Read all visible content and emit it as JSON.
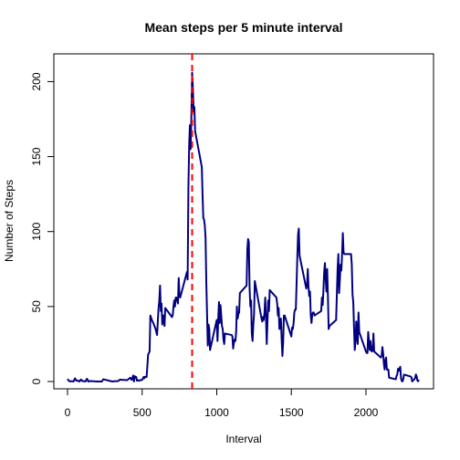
{
  "chart_data": {
    "type": "line",
    "title": "Mean steps per 5 minute interval",
    "xlabel": "Interval",
    "ylabel": "Number of Steps",
    "xlim": [
      0,
      2355
    ],
    "ylim": [
      0,
      210
    ],
    "xticks": [
      0,
      500,
      1000,
      1500,
      2000
    ],
    "yticks": [
      0,
      50,
      100,
      150,
      200
    ],
    "grid": false,
    "series": [
      {
        "color": "#000080",
        "points": [
          [
            0,
            1.7
          ],
          [
            10,
            0.3
          ],
          [
            20,
            0.1
          ],
          [
            30,
            0.2
          ],
          [
            40,
            0.0
          ],
          [
            50,
            2.1
          ],
          [
            60,
            0.5
          ],
          [
            70,
            0.6
          ],
          [
            80,
            0.0
          ],
          [
            90,
            1.3
          ],
          [
            100,
            0.3
          ],
          [
            110,
            0.2
          ],
          [
            120,
            0.0
          ],
          [
            130,
            1.8
          ],
          [
            140,
            0.0
          ],
          [
            150,
            0.3
          ],
          [
            200,
            0.0
          ],
          [
            220,
            0.0
          ],
          [
            230,
            0.0
          ],
          [
            240,
            1.5
          ],
          [
            300,
            0.0
          ],
          [
            320,
            0.2
          ],
          [
            340,
            0.3
          ],
          [
            350,
            1.2
          ],
          [
            400,
            0.9
          ],
          [
            420,
            2.5
          ],
          [
            430,
            1.1
          ],
          [
            440,
            4.0
          ],
          [
            445,
            0.0
          ],
          [
            450,
            3.5
          ],
          [
            460,
            3.0
          ],
          [
            465,
            0.5
          ],
          [
            470,
            1.0
          ],
          [
            480,
            0.5
          ],
          [
            490,
            1.0
          ],
          [
            500,
            1.0
          ],
          [
            510,
            3.0
          ],
          [
            515,
            2.2
          ],
          [
            520,
            3.2
          ],
          [
            530,
            3.0
          ],
          [
            540,
            18.0
          ],
          [
            550,
            20.0
          ],
          [
            555,
            44.0
          ],
          [
            565,
            41.0
          ],
          [
            575,
            39.0
          ],
          [
            590,
            35.0
          ],
          [
            600,
            31.0
          ],
          [
            610,
            49.0
          ],
          [
            615,
            54.0
          ],
          [
            620,
            64.0
          ],
          [
            625,
            47.0
          ],
          [
            630,
            52.0
          ],
          [
            635,
            38.0
          ],
          [
            640,
            44.0
          ],
          [
            645,
            44.0
          ],
          [
            650,
            37.0
          ],
          [
            655,
            49.0
          ],
          [
            700,
            43.0
          ],
          [
            705,
            44.0
          ],
          [
            710,
            50.0
          ],
          [
            715,
            54.0
          ],
          [
            720,
            50.0
          ],
          [
            725,
            56.0
          ],
          [
            730,
            56.0
          ],
          [
            740,
            52.0
          ],
          [
            745,
            69.0
          ],
          [
            750,
            58.0
          ],
          [
            755,
            56.0
          ],
          [
            800,
            73.0
          ],
          [
            805,
            68.0
          ],
          [
            810,
            129.0
          ],
          [
            815,
            157.0
          ],
          [
            820,
            171.0
          ],
          [
            825,
            155.0
          ],
          [
            830,
            177.0
          ],
          [
            835,
            206.0
          ],
          [
            840,
            196.0
          ],
          [
            845,
            180.0
          ],
          [
            850,
            183.0
          ],
          [
            855,
            167.0
          ],
          [
            900,
            143.0
          ],
          [
            905,
            124.0
          ],
          [
            910,
            109.0
          ],
          [
            915,
            108.0
          ],
          [
            920,
            104.0
          ],
          [
            925,
            96.0
          ],
          [
            930,
            66.0
          ],
          [
            935,
            45.0
          ],
          [
            940,
            24.0
          ],
          [
            945,
            38.0
          ],
          [
            950,
            35.0
          ],
          [
            955,
            21.0
          ],
          [
            1000,
            41.0
          ],
          [
            1005,
            27.0
          ],
          [
            1010,
            42.0
          ],
          [
            1015,
            53.0
          ],
          [
            1020,
            39.0
          ],
          [
            1025,
            51.0
          ],
          [
            1030,
            44.0
          ],
          [
            1035,
            37.0
          ],
          [
            1040,
            35.0
          ],
          [
            1045,
            28.0
          ],
          [
            1050,
            25.0
          ],
          [
            1055,
            32.0
          ],
          [
            1100,
            31.0
          ],
          [
            1105,
            30.0
          ],
          [
            1110,
            22.0
          ],
          [
            1115,
            26.0
          ],
          [
            1120,
            28.0
          ],
          [
            1125,
            27.0
          ],
          [
            1130,
            33.0
          ],
          [
            1135,
            50.0
          ],
          [
            1140,
            42.0
          ],
          [
            1145,
            45.0
          ],
          [
            1150,
            46.0
          ],
          [
            1155,
            59.0
          ],
          [
            1200,
            64.0
          ],
          [
            1205,
            88.0
          ],
          [
            1210,
            95.0
          ],
          [
            1215,
            93.0
          ],
          [
            1220,
            63.0
          ],
          [
            1225,
            50.0
          ],
          [
            1230,
            54.0
          ],
          [
            1235,
            32.0
          ],
          [
            1240,
            27.0
          ],
          [
            1245,
            38.0
          ],
          [
            1250,
            45.0
          ],
          [
            1255,
            67.0
          ],
          [
            1300,
            42.0
          ],
          [
            1305,
            40.0
          ],
          [
            1310,
            43.0
          ],
          [
            1315,
            41.0
          ],
          [
            1320,
            46.0
          ],
          [
            1325,
            56.0
          ],
          [
            1330,
            43.0
          ],
          [
            1335,
            25.0
          ],
          [
            1340,
            40.0
          ],
          [
            1345,
            54.0
          ],
          [
            1350,
            47.0
          ],
          [
            1355,
            61.0
          ],
          [
            1400,
            56.0
          ],
          [
            1405,
            52.0
          ],
          [
            1410,
            44.0
          ],
          [
            1415,
            49.0
          ],
          [
            1420,
            35.0
          ],
          [
            1425,
            38.0
          ],
          [
            1430,
            42.0
          ],
          [
            1435,
            28.0
          ],
          [
            1440,
            17.0
          ],
          [
            1445,
            26.0
          ],
          [
            1450,
            44.0
          ],
          [
            1455,
            44.0
          ],
          [
            1500,
            30.0
          ],
          [
            1505,
            36.0
          ],
          [
            1510,
            35.0
          ],
          [
            1515,
            39.0
          ],
          [
            1520,
            46.0
          ],
          [
            1525,
            48.0
          ],
          [
            1530,
            48.0
          ],
          [
            1535,
            65.0
          ],
          [
            1540,
            83.0
          ],
          [
            1545,
            98.0
          ],
          [
            1550,
            102.0
          ],
          [
            1555,
            84.0
          ],
          [
            1600,
            62.0
          ],
          [
            1605,
            64.0
          ],
          [
            1610,
            75.0
          ],
          [
            1615,
            63.0
          ],
          [
            1620,
            57.0
          ],
          [
            1625,
            60.0
          ],
          [
            1630,
            44.0
          ],
          [
            1635,
            39.0
          ],
          [
            1640,
            45.0
          ],
          [
            1645,
            46.0
          ],
          [
            1650,
            46.0
          ],
          [
            1655,
            44.0
          ],
          [
            1700,
            47.0
          ],
          [
            1705,
            56.0
          ],
          [
            1710,
            51.0
          ],
          [
            1715,
            61.0
          ],
          [
            1720,
            73.0
          ],
          [
            1725,
            79.0
          ],
          [
            1730,
            69.0
          ],
          [
            1735,
            60.0
          ],
          [
            1740,
            75.0
          ],
          [
            1745,
            57.0
          ],
          [
            1750,
            35.0
          ],
          [
            1755,
            37.0
          ],
          [
            1800,
            41.0
          ],
          [
            1805,
            58.0
          ],
          [
            1810,
            75.0
          ],
          [
            1815,
            85.0
          ],
          [
            1820,
            59.0
          ],
          [
            1825,
            68.0
          ],
          [
            1830,
            78.0
          ],
          [
            1835,
            74.0
          ],
          [
            1840,
            85.0
          ],
          [
            1845,
            99.0
          ],
          [
            1850,
            86.0
          ],
          [
            1855,
            85.0
          ],
          [
            1900,
            85.0
          ],
          [
            1905,
            78.0
          ],
          [
            1910,
            58.0
          ],
          [
            1915,
            53.0
          ],
          [
            1920,
            36.0
          ],
          [
            1925,
            21.0
          ],
          [
            1930,
            27.0
          ],
          [
            1935,
            40.0
          ],
          [
            1940,
            30.0
          ],
          [
            1945,
            25.0
          ],
          [
            1950,
            46.0
          ],
          [
            1955,
            33.0
          ],
          [
            2000,
            20.0
          ],
          [
            2005,
            19.0
          ],
          [
            2010,
            19.0
          ],
          [
            2015,
            33.0
          ],
          [
            2020,
            27.0
          ],
          [
            2025,
            21.0
          ],
          [
            2030,
            27.0
          ],
          [
            2035,
            21.0
          ],
          [
            2040,
            20.0
          ],
          [
            2045,
            21.0
          ],
          [
            2050,
            32.0
          ],
          [
            2055,
            20.0
          ],
          [
            2100,
            16.0
          ],
          [
            2105,
            17.0
          ],
          [
            2110,
            23.0
          ],
          [
            2115,
            19.0
          ],
          [
            2120,
            12.0
          ],
          [
            2125,
            8.0
          ],
          [
            2130,
            14.0
          ],
          [
            2135,
            16.0
          ],
          [
            2140,
            8.0
          ],
          [
            2145,
            8.0
          ],
          [
            2150,
            8.0
          ],
          [
            2155,
            2.6
          ],
          [
            2200,
            1.5
          ],
          [
            2205,
            3.7
          ],
          [
            2210,
            4.8
          ],
          [
            2215,
            8.5
          ],
          [
            2220,
            7.1
          ],
          [
            2225,
            8.7
          ],
          [
            2230,
            9.8
          ],
          [
            2235,
            2.2
          ],
          [
            2240,
            0.3
          ],
          [
            2245,
            0.1
          ],
          [
            2250,
            1.6
          ],
          [
            2255,
            4.6
          ],
          [
            2300,
            3.3
          ],
          [
            2305,
            2.8
          ],
          [
            2310,
            0.0
          ],
          [
            2315,
            0.8
          ],
          [
            2320,
            1.0
          ],
          [
            2325,
            1.6
          ],
          [
            2330,
            2.6
          ],
          [
            2335,
            4.7
          ],
          [
            2340,
            3.3
          ],
          [
            2345,
            0.6
          ],
          [
            2350,
            0.2
          ],
          [
            2355,
            1.1
          ]
        ]
      }
    ],
    "reference_line": {
      "x": 835,
      "color": "#FF0000",
      "style": "dashed"
    }
  }
}
